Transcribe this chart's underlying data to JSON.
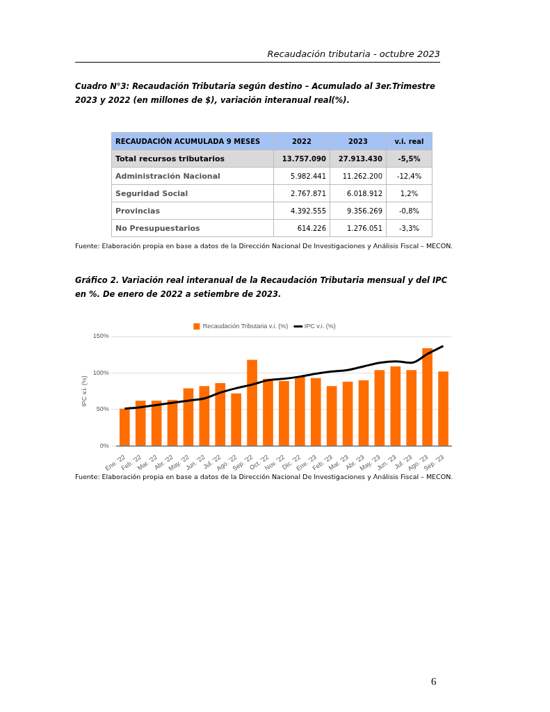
{
  "chart_data": [
    {
      "type": "other",
      "title": "Cuadro N°3: Recaudación Tributaria según destino – Acumulado al 3er.Trimestre 2023 y 2022 (en millones de $), variación interanual real(%).",
      "ylabel": "RECAUDACIÓN ACUMULADA 9 MESES",
      "categories": [
        "Total recursos tributarios",
        "Administración Nacional",
        "Seguridad Social",
        "Provincias",
        "No Presupuestarios"
      ],
      "series": [
        {
          "name": "2022",
          "values": [
            13757090,
            5982441,
            2767871,
            4392555,
            614226
          ],
          "value_labels": [
            "13.757.090",
            "5.982.441",
            "2.767.871",
            "4.392.555",
            "614.226"
          ]
        },
        {
          "name": "2023",
          "values": [
            27913430,
            11262200,
            6018912,
            9356269,
            1276051
          ],
          "value_labels": [
            "27.913.430",
            "11.262.200",
            "6.018.912",
            "9.356.269",
            "1.276.051"
          ]
        },
        {
          "name": "v.i. real",
          "values": [
            -5.5,
            -12.4,
            1.2,
            -0.8,
            -3.3
          ],
          "value_labels": [
            "-5,5%",
            "-12,4%",
            "1,2%",
            "-0,8%",
            "-3,3%"
          ]
        }
      ],
      "annotations": [
        "Recaudación tributaria - octubre 2023",
        "Fuente: Elaboración propia en base a datos de la Dirección Nacional De Investigaciones y Análisis Fiscal – MECON.",
        "6"
      ]
    },
    {
      "type": "bar",
      "title": "Gráfico 2. Variación real interanual de la Recaudación Tributaria mensual y del IPC en %. De enero de 2022 a setiembre de 2023.",
      "ylabel": "IPC v.i. (%)",
      "categories": [
        "Ene. '22",
        "Feb. '22",
        "Mar. '22",
        "Abr. '22",
        "May. '22",
        "Jun. '22",
        "Jul. '22",
        "Ago. '22",
        "Sep. '22",
        "Oct. '22",
        "Nov. '22",
        "Dic. '22",
        "Ene. '23",
        "Feb. '23",
        "Mar. '23",
        "Abr. '23",
        "May. '23",
        "Jun. '23",
        "Jul. '23",
        "Ago. '23",
        "Sep. '23"
      ],
      "series": [
        {
          "name": "Recaudación Tributaria v.i. (%)",
          "type": "bar",
          "color": "#ff6d01",
          "values": [
            51,
            62,
            62,
            63,
            79,
            82,
            86,
            72,
            118,
            92,
            89,
            95,
            93,
            82,
            88,
            90,
            104,
            109,
            104,
            134,
            102
          ]
        },
        {
          "name": "IPC v.i. (%)",
          "type": "line",
          "color": "#000000",
          "values": [
            51,
            53,
            56,
            59,
            62,
            65,
            73,
            79,
            84,
            90,
            92,
            95,
            99,
            102,
            104,
            109,
            114,
            116,
            114,
            126,
            137
          ]
        }
      ],
      "ylim": [
        0,
        150
      ],
      "yticks": [
        {
          "value": 0,
          "label": "0%"
        },
        {
          "value": 50,
          "label": "50%"
        },
        {
          "value": 100,
          "label": "100%"
        },
        {
          "value": 150,
          "label": "150%"
        }
      ],
      "grid": "y",
      "legend": "top",
      "marker": "none",
      "line_style": "solid",
      "annotations": [
        "Fuente: Elaboración propia en base a datos de la Dirección Nacional De Investigaciones y Análisis Fiscal – MECON."
      ]
    }
  ]
}
